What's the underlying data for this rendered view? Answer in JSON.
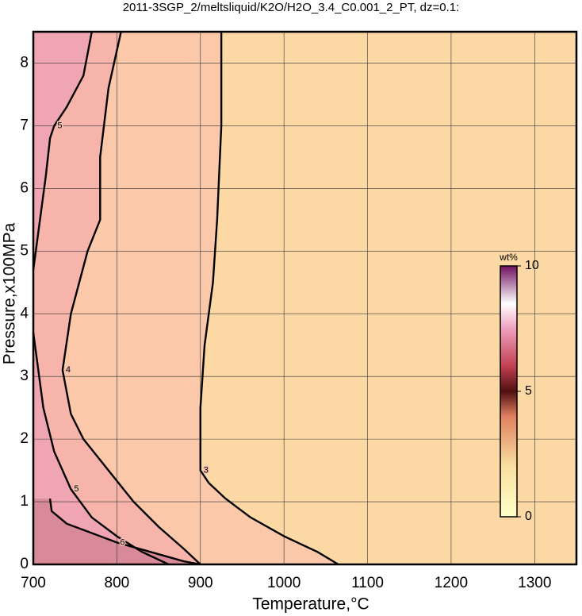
{
  "chart_data": {
    "type": "contour",
    "title": "2011-3SGP_2/meltsliquid/K2O/H2O_3.4_C0.001_2_PT, dz=0.1:",
    "x_label": "Temperature,°C",
    "y_label": "Pressure,x100MPa",
    "xlim": [
      700,
      1350
    ],
    "ylim": [
      0,
      8.5
    ],
    "xticks": [
      700,
      800,
      900,
      1000,
      1100,
      1200,
      1300
    ],
    "yticks": [
      0,
      1,
      2,
      3,
      4,
      5,
      6,
      7,
      8
    ],
    "grid": true,
    "contours": [
      {
        "level": 3,
        "color": "#fbc8aa",
        "x": [
          1065,
          1040,
          1000,
          960,
          930,
          910,
          900,
          900,
          905,
          915,
          920,
          925,
          925
        ],
        "y": [
          0,
          0.2,
          0.45,
          0.75,
          1.05,
          1.3,
          1.5,
          2.5,
          3.5,
          4.5,
          5.5,
          7,
          8.5
        ]
      },
      {
        "level": 4,
        "color": "#f7b4aa",
        "x": [
          900,
          880,
          850,
          820,
          790,
          760,
          745,
          735,
          745,
          765,
          780,
          780,
          790,
          800,
          805
        ],
        "y": [
          0,
          0.25,
          0.6,
          1.0,
          1.5,
          2.0,
          2.4,
          3.1,
          4.0,
          5.0,
          5.5,
          6.5,
          7.6,
          8.2,
          8.5
        ]
      },
      {
        "level": 5,
        "color": "#f0a6b2",
        "x": [
          862,
          830,
          800,
          770,
          745,
          725,
          712,
          705,
          700,
          null,
          700,
          708,
          715,
          720,
          725,
          740,
          760,
          770
        ],
        "y": [
          0,
          0.2,
          0.45,
          0.75,
          1.2,
          1.8,
          2.5,
          3.2,
          3.7,
          null,
          4.7,
          5.5,
          6.2,
          6.8,
          7.0,
          7.3,
          7.8,
          8.5
        ]
      },
      {
        "level": 6,
        "color": "#d88a98",
        "x": [
          720,
          722,
          740,
          770,
          800,
          840,
          880,
          900
        ],
        "y": [
          1.05,
          0.85,
          0.65,
          0.5,
          0.35,
          0.2,
          0.05,
          0
        ]
      }
    ],
    "colorbar": {
      "label": "wt%",
      "lim": [
        0,
        10
      ],
      "ticks": [
        0,
        5,
        10
      ],
      "colormap": [
        {
          "value": 0,
          "color": "#ffffc8"
        },
        {
          "value": 2,
          "color": "#f8e0a0"
        },
        {
          "value": 4,
          "color": "#e08060"
        },
        {
          "value": 5,
          "color": "#501010"
        },
        {
          "value": 6,
          "color": "#c04050"
        },
        {
          "value": 7.5,
          "color": "#f0a0c0"
        },
        {
          "value": 8.5,
          "color": "#ffffff"
        },
        {
          "value": 10,
          "color": "#701060"
        }
      ]
    }
  }
}
